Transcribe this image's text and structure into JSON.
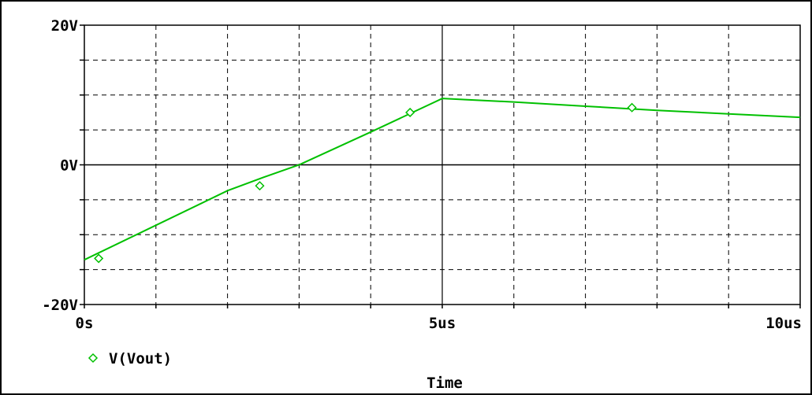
{
  "chart_data": {
    "type": "line",
    "xlabel": "Time",
    "ylabel": "",
    "xlim": [
      0,
      10
    ],
    "ylim": [
      -20,
      20
    ],
    "x_unit": "us",
    "x_ticks": [
      {
        "value": 0,
        "label": "0s"
      },
      {
        "value": 5,
        "label": "5us"
      },
      {
        "value": 10,
        "label": "10us"
      }
    ],
    "y_ticks": [
      {
        "value": 20,
        "label": "20V"
      },
      {
        "value": 0,
        "label": "0V"
      },
      {
        "value": -20,
        "label": "-20V"
      }
    ],
    "grid": true,
    "legend": "bottom-left",
    "series": [
      {
        "name": "V(Vout)",
        "color": "#00c000",
        "marker": "diamond",
        "x": [
          0,
          2.0,
          2.5,
          3.0,
          4.0,
          5.0,
          6.0,
          7.0,
          8.0,
          9.0,
          10.0
        ],
        "y": [
          -13.6,
          -3.7,
          -1.8,
          0.0,
          4.7,
          9.5,
          9.0,
          8.4,
          7.8,
          7.3,
          6.8
        ],
        "marker_x": [
          0.2,
          2.45,
          4.55,
          7.65
        ],
        "marker_y": [
          -13.4,
          -3.0,
          7.5,
          8.2
        ]
      }
    ]
  }
}
